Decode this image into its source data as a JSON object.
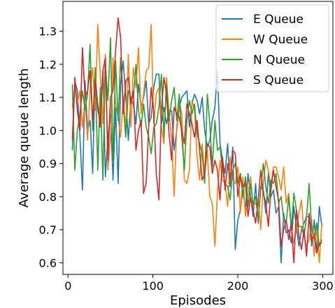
{
  "chart_data": {
    "type": "line",
    "title": "",
    "xlabel": "Episodes",
    "ylabel": "Average queue length",
    "xlim": [
      -6,
      312
    ],
    "ylim": [
      0.565,
      1.39
    ],
    "xticks": [
      0,
      100,
      200,
      300
    ],
    "yticks": [
      0.6,
      0.7,
      0.8,
      0.9,
      1.0,
      1.1,
      1.2,
      1.3
    ],
    "xtick_labels": [
      "0",
      "100",
      "200",
      "300"
    ],
    "ytick_labels": [
      "0.6",
      "0.7",
      "0.8",
      "0.9",
      "1.0",
      "1.1",
      "1.2",
      "1.3"
    ],
    "grid": false,
    "legend_position": "top-right",
    "x": [
      5,
      8,
      11,
      14,
      17,
      20,
      23,
      26,
      29,
      32,
      35,
      38,
      41,
      44,
      47,
      50,
      53,
      56,
      59,
      62,
      65,
      68,
      71,
      74,
      77,
      80,
      83,
      86,
      89,
      92,
      95,
      98,
      101,
      104,
      107,
      110,
      113,
      116,
      119,
      122,
      125,
      128,
      131,
      134,
      137,
      140,
      143,
      146,
      149,
      152,
      155,
      158,
      161,
      164,
      167,
      170,
      173,
      176,
      179,
      182,
      185,
      188,
      191,
      194,
      197,
      200,
      203,
      206,
      209,
      212,
      215,
      218,
      221,
      224,
      227,
      230,
      233,
      236,
      239,
      242,
      245,
      248,
      251,
      254,
      257,
      260,
      263,
      266,
      269,
      272,
      275,
      278,
      281,
      284,
      287,
      290,
      293,
      296,
      299
    ],
    "series": [
      {
        "name": "E Queue",
        "color": "#1f77b4",
        "values": [
          0.94,
          1.15,
          1.12,
          0.98,
          0.82,
          1.15,
          1.0,
          1.03,
          0.87,
          1.18,
          1.06,
          1.03,
          1.18,
          0.86,
          0.98,
          1.05,
          0.85,
          1.07,
          0.84,
          1.14,
          1.21,
          1.1,
          0.97,
          1.1,
          1.08,
          1.02,
          1.14,
          1.07,
          1.1,
          1.15,
          1.02,
          1.04,
          1.13,
          1.17,
          1.17,
          1.02,
          1.07,
          1.02,
          1.06,
          1.06,
          0.94,
          1.0,
          1.07,
          1.1,
          1.11,
          1.12,
          1.01,
          1.08,
          1.11,
          1.09,
          1.05,
          1.1,
          1.0,
          0.95,
          0.97,
          1.03,
          1.07,
          1.18,
          0.96,
          0.91,
          0.87,
          0.96,
          0.83,
          0.95,
          0.64,
          0.73,
          0.76,
          0.82,
          0.76,
          0.87,
          0.8,
          0.74,
          0.84,
          0.72,
          0.83,
          0.82,
          0.75,
          0.87,
          0.8,
          0.82,
          0.75,
          0.77,
          0.6,
          0.75,
          0.69,
          0.7,
          0.66,
          0.77,
          0.71,
          0.65,
          0.7,
          0.72,
          0.74,
          0.74,
          0.65,
          0.73,
          0.63,
          0.77,
          0.71
        ]
      },
      {
        "name": "W Queue",
        "color": "#ff7f0e",
        "values": [
          1.07,
          1.13,
          1.08,
          1.12,
          1.01,
          1.09,
          0.97,
          1.12,
          1.19,
          1.06,
          1.32,
          1.17,
          1.02,
          1.23,
          0.88,
          0.98,
          1.22,
          1.08,
          1.04,
          0.98,
          1.1,
          1.0,
          1.23,
          1.01,
          1.19,
          1.13,
          1.25,
          1.05,
          1.11,
          1.18,
          1.19,
          1.32,
          1.02,
          1.11,
          1.13,
          1.01,
          0.96,
          1.16,
          1.05,
          0.98,
          0.8,
          1.01,
          1.09,
          1.05,
          0.85,
          0.84,
          0.88,
          1.09,
          1.06,
          0.92,
          0.85,
          0.96,
          0.87,
          0.94,
          0.8,
          0.78,
          0.65,
          0.81,
          0.91,
          0.85,
          0.84,
          0.77,
          0.92,
          0.85,
          0.84,
          0.89,
          0.75,
          0.86,
          0.74,
          0.81,
          0.86,
          0.77,
          0.78,
          0.79,
          0.7,
          0.84,
          0.91,
          0.88,
          0.83,
          0.89,
          0.89,
          0.86,
          0.82,
          0.89,
          0.78,
          0.81,
          0.71,
          0.66,
          0.7,
          0.75,
          0.79,
          0.68,
          0.65,
          0.67,
          0.73,
          0.62,
          0.71,
          0.6,
          0.72
        ]
      },
      {
        "name": "N Queue",
        "color": "#2ca02c",
        "values": [
          1.14,
          0.88,
          1.0,
          1.05,
          1.12,
          1.06,
          1.11,
          1.26,
          1.0,
          1.19,
          0.88,
          1.13,
          0.85,
          1.2,
          1.09,
          1.28,
          0.91,
          1.21,
          1.03,
          1.22,
          1.08,
          0.98,
          1.12,
          1.1,
          1.1,
          1.2,
          1.06,
          1.01,
          1.08,
          1.01,
          0.98,
          0.93,
          1.01,
          1.02,
          1.07,
          1.17,
          0.98,
          1.14,
          1.03,
          1.09,
          1.13,
          1.03,
          1.11,
          0.98,
          0.88,
          1.03,
          1.09,
          1.05,
          1.08,
          0.99,
          0.96,
          0.93,
          0.84,
          1.11,
          1.02,
          0.89,
          1.03,
          0.94,
          0.95,
          0.88,
          0.84,
          0.83,
          0.79,
          0.88,
          0.9,
          0.84,
          0.87,
          0.8,
          0.86,
          0.77,
          0.84,
          0.78,
          0.8,
          0.73,
          0.82,
          0.9,
          0.83,
          0.78,
          0.85,
          0.84,
          0.87,
          0.78,
          0.8,
          0.73,
          0.72,
          0.8,
          0.7,
          0.81,
          0.76,
          0.71,
          0.71,
          0.68,
          0.74,
          0.84,
          0.7,
          0.68,
          0.72,
          0.65,
          0.67
        ]
      },
      {
        "name": "S Queue",
        "color": "#d62728",
        "values": [
          0.97,
          1.16,
          1.06,
          1.0,
          1.25,
          1.1,
          1.12,
          1.18,
          1.03,
          1.15,
          1.08,
          1.01,
          1.18,
          1.22,
          0.91,
          1.1,
          1.12,
          1.24,
          1.34,
          1.28,
          1.05,
          1.15,
          1.16,
          1.08,
          1.12,
          0.94,
          1.0,
          1.03,
          0.81,
          0.84,
          1.01,
          1.13,
          1.05,
          0.87,
          0.79,
          1.06,
          1.16,
          1.11,
          0.99,
          0.91,
          1.07,
          1.05,
          1.04,
          1.0,
          0.96,
          1.08,
          1.05,
          1.02,
          0.98,
          1.03,
          0.94,
          0.85,
          0.87,
          0.96,
          0.95,
          0.87,
          0.91,
          0.88,
          0.79,
          0.92,
          0.82,
          0.9,
          0.85,
          0.94,
          0.93,
          0.8,
          0.86,
          0.83,
          0.84,
          0.74,
          0.8,
          0.76,
          0.72,
          0.79,
          0.88,
          0.81,
          0.78,
          0.71,
          0.82,
          0.88,
          0.83,
          0.79,
          0.65,
          0.7,
          0.73,
          0.67,
          0.72,
          0.6,
          0.76,
          0.68,
          0.64,
          0.7,
          0.62,
          0.75,
          0.67,
          0.68,
          0.63,
          0.66,
          0.66
        ]
      }
    ]
  }
}
